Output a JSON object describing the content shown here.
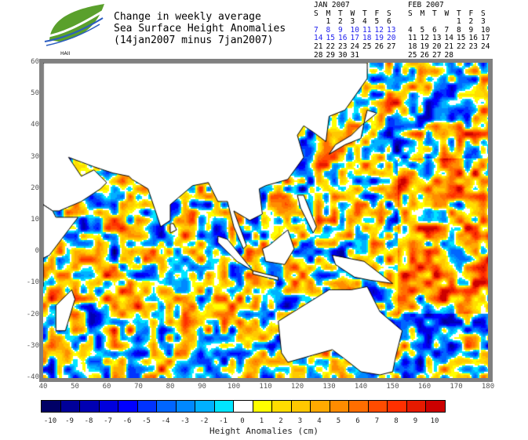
{
  "logo": {
    "text": "HAII"
  },
  "title": [
    "Change in weekly average",
    "Sea Surface Height Anomalies",
    "(14jan2007 minus 7jan2007)"
  ],
  "calendars": [
    {
      "title": "JAN 2007",
      "days": [
        "S",
        "M",
        "T",
        "W",
        "T",
        "F",
        "S"
      ],
      "weeks": [
        [
          "",
          "1",
          "2",
          "3",
          "4",
          "5",
          "6"
        ],
        [
          "7",
          "8",
          "9",
          "10",
          "11",
          "12",
          "13"
        ],
        [
          "14",
          "15",
          "16",
          "17",
          "18",
          "19",
          "20"
        ],
        [
          "21",
          "22",
          "23",
          "24",
          "25",
          "26",
          "27"
        ],
        [
          "28",
          "29",
          "30",
          "31",
          "",
          "",
          ""
        ]
      ],
      "highlighted_weeks": [
        1,
        2
      ]
    },
    {
      "title": "FEB 2007",
      "days": [
        "S",
        "M",
        "T",
        "W",
        "T",
        "F",
        "S"
      ],
      "weeks": [
        [
          "",
          "",
          "",
          "",
          "1",
          "2",
          "3"
        ],
        [
          "4",
          "5",
          "6",
          "7",
          "8",
          "9",
          "10"
        ],
        [
          "11",
          "12",
          "13",
          "14",
          "15",
          "16",
          "17"
        ],
        [
          "18",
          "19",
          "20",
          "21",
          "22",
          "23",
          "24"
        ],
        [
          "25",
          "26",
          "27",
          "28",
          "",
          "",
          ""
        ]
      ],
      "highlighted_weeks": []
    }
  ],
  "map": {
    "lon_range": [
      40,
      180
    ],
    "lat_range": [
      -40,
      60
    ],
    "lon_ticks": [
      "40",
      "50",
      "60",
      "70",
      "80",
      "90",
      "100",
      "110",
      "120",
      "130",
      "140",
      "150",
      "160",
      "170",
      "180"
    ],
    "lat_ticks": [
      "60",
      "50",
      "40",
      "30",
      "20",
      "10",
      "0",
      "-10",
      "-20",
      "-30",
      "-40"
    ]
  },
  "colorbar": {
    "labels": [
      "-10",
      "-9",
      "-8",
      "-7",
      "-6",
      "-5",
      "-4",
      "-3",
      "-2",
      "-1",
      "0",
      "1",
      "2",
      "3",
      "4",
      "5",
      "6",
      "7",
      "8",
      "9",
      "10"
    ],
    "colors": [
      "#000066",
      "#000099",
      "#0000b3",
      "#0000dd",
      "#0000ff",
      "#0033ff",
      "#0066ff",
      "#0088ff",
      "#00b0ff",
      "#00e5ff",
      "#ffffff",
      "#ffff00",
      "#ffdd00",
      "#ffc800",
      "#ffaa00",
      "#ff8c00",
      "#ff6e00",
      "#ff4c00",
      "#ff3000",
      "#e61a00",
      "#cc0000"
    ],
    "unit_label": "Height Anomalies (cm)"
  }
}
